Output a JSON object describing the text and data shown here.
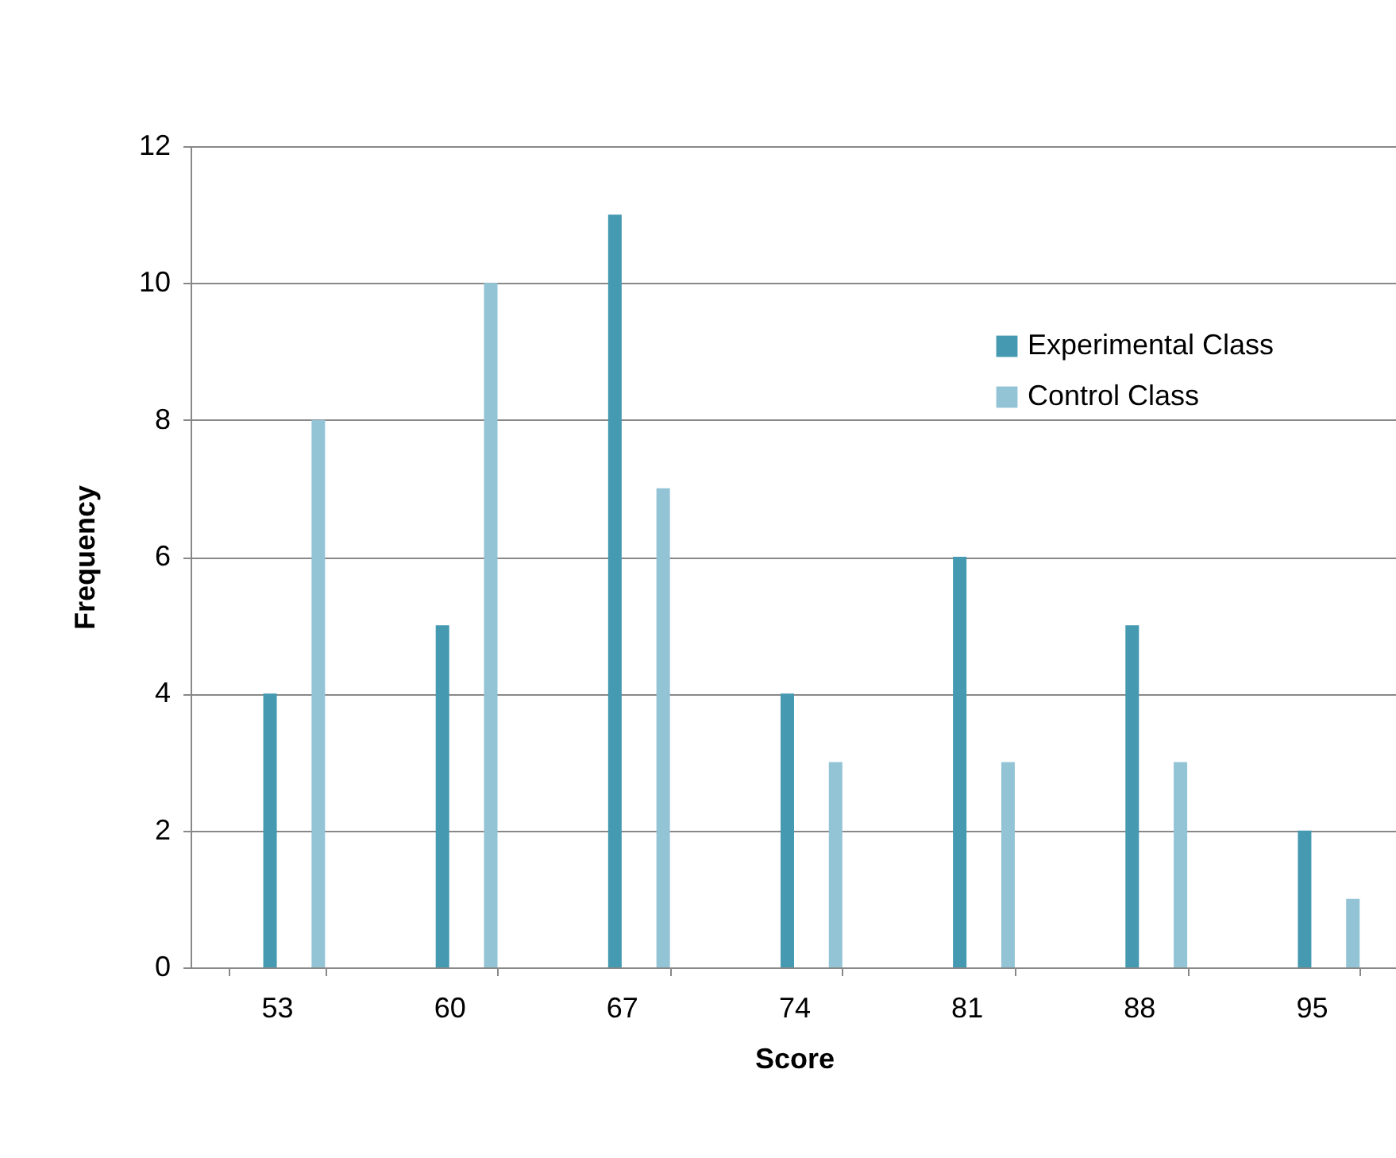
{
  "chart_data": {
    "type": "bar",
    "xlabel": "Score",
    "ylabel": "Frequency",
    "categories": [
      "53",
      "60",
      "67",
      "74",
      "81",
      "88",
      "95"
    ],
    "series": [
      {
        "name": "Experimental Class",
        "color": "#4599b1",
        "values": [
          4,
          5,
          11,
          4,
          6,
          5,
          2
        ]
      },
      {
        "name": "Control Class",
        "color": "#93c4d6",
        "values": [
          8,
          10,
          7,
          3,
          3,
          3,
          1
        ]
      }
    ],
    "ylim": [
      0,
      12
    ],
    "yticks": [
      0,
      2,
      4,
      6,
      8,
      10,
      12
    ],
    "grid": "y",
    "legend": "top right"
  }
}
